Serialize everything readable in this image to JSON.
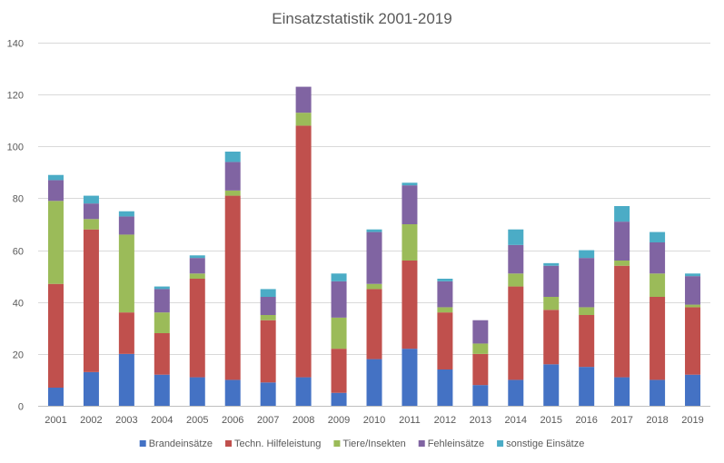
{
  "chart_data": {
    "type": "bar",
    "stacked": true,
    "title": "Einsatzstatistik 2001-2019",
    "xlabel": "",
    "ylabel": "",
    "ylim": [
      0,
      140
    ],
    "yticks": [
      0,
      20,
      40,
      60,
      80,
      100,
      120,
      140
    ],
    "grid": true,
    "legend_position": "bottom",
    "categories": [
      "2001",
      "2002",
      "2003",
      "2004",
      "2005",
      "2006",
      "2007",
      "2008",
      "2009",
      "2010",
      "2011",
      "2012",
      "2013",
      "2014",
      "2015",
      "2016",
      "2017",
      "2018",
      "2019"
    ],
    "series": [
      {
        "name": "Brandeinsätze",
        "color": "#4472c4",
        "values": [
          7,
          13,
          20,
          12,
          11,
          10,
          9,
          11,
          5,
          18,
          22,
          14,
          8,
          10,
          16,
          15,
          11,
          10,
          12
        ]
      },
      {
        "name": "Techn. Hilfeleistung",
        "color": "#c0504d",
        "values": [
          40,
          55,
          16,
          16,
          38,
          71,
          24,
          97,
          17,
          27,
          34,
          22,
          12,
          36,
          21,
          20,
          43,
          32,
          26
        ]
      },
      {
        "name": "Tiere/Insekten",
        "color": "#9bbb59",
        "values": [
          32,
          4,
          30,
          8,
          2,
          2,
          2,
          5,
          12,
          2,
          14,
          2,
          4,
          5,
          5,
          3,
          2,
          9,
          1
        ]
      },
      {
        "name": "Fehleinsätze",
        "color": "#8064a2",
        "values": [
          8,
          6,
          7,
          9,
          6,
          11,
          7,
          10,
          14,
          20,
          15,
          10,
          9,
          11,
          12,
          19,
          15,
          12,
          11
        ]
      },
      {
        "name": "sonstige Einsätze",
        "color": "#4bacc6",
        "values": [
          2,
          3,
          2,
          1,
          1,
          4,
          3,
          0,
          3,
          1,
          1,
          1,
          0,
          6,
          1,
          3,
          6,
          4,
          1
        ]
      }
    ]
  }
}
